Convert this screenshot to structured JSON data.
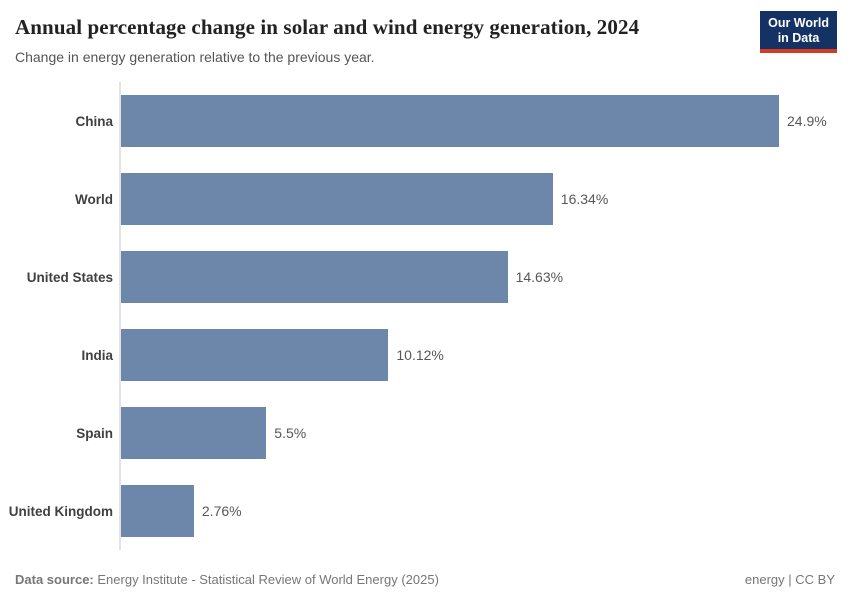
{
  "header": {
    "title": "Annual percentage change in solar and wind energy generation, 2024",
    "subtitle": "Change in energy generation relative to the previous year.",
    "logo": {
      "line1": "Our World",
      "line2": "in Data",
      "bg_color": "#143364",
      "accent_color": "#d43b22"
    }
  },
  "chart_data": {
    "type": "bar",
    "orientation": "horizontal",
    "title": "Annual percentage change in solar and wind energy generation, 2024",
    "subtitle": "Change in energy generation relative to the previous year.",
    "categories": [
      "China",
      "World",
      "United States",
      "India",
      "Spain",
      "United Kingdom"
    ],
    "values": [
      24.9,
      16.34,
      14.63,
      10.12,
      5.5,
      2.76
    ],
    "value_labels": [
      "24.9%",
      "16.34%",
      "14.63%",
      "10.12%",
      "5.5%",
      "2.76%"
    ],
    "bar_color": "#6d87ab",
    "xlim": [
      0,
      24.9
    ],
    "grid": false,
    "legend": "none"
  },
  "footer": {
    "source_label": "Data source:",
    "source_text": "Energy Institute - Statistical Review of World Energy (2025)",
    "right_text": "energy | CC BY"
  }
}
